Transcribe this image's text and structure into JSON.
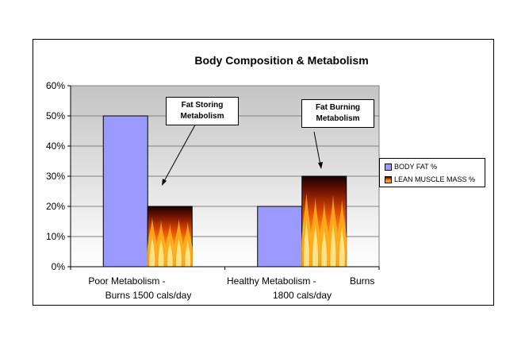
{
  "chart_data": {
    "type": "bar",
    "title": "Body Composition & Metabolism",
    "categories": [
      [
        "Poor Metabolism -",
        "Burns 1500 cals/day"
      ],
      [
        "Healthy Metabolism -",
        "Burns",
        "1800 cals/day"
      ]
    ],
    "series": [
      {
        "name": "BODY FAT %",
        "values": [
          50,
          20
        ],
        "color": "#9999ff"
      },
      {
        "name": "LEAN MUSCLE MASS %",
        "values": [
          20,
          30
        ],
        "fill": "flame"
      }
    ],
    "ylim": [
      0,
      60
    ],
    "yticks": [
      "0%",
      "10%",
      "20%",
      "30%",
      "40%",
      "50%",
      "60%"
    ],
    "grid": true,
    "plot_background": "#c0c0c0",
    "legend_position": "right",
    "annotations": [
      {
        "lines": [
          "Fat Storing",
          "Metabolism"
        ]
      },
      {
        "lines": [
          "Fat Burning",
          "Metabolism"
        ]
      }
    ]
  }
}
